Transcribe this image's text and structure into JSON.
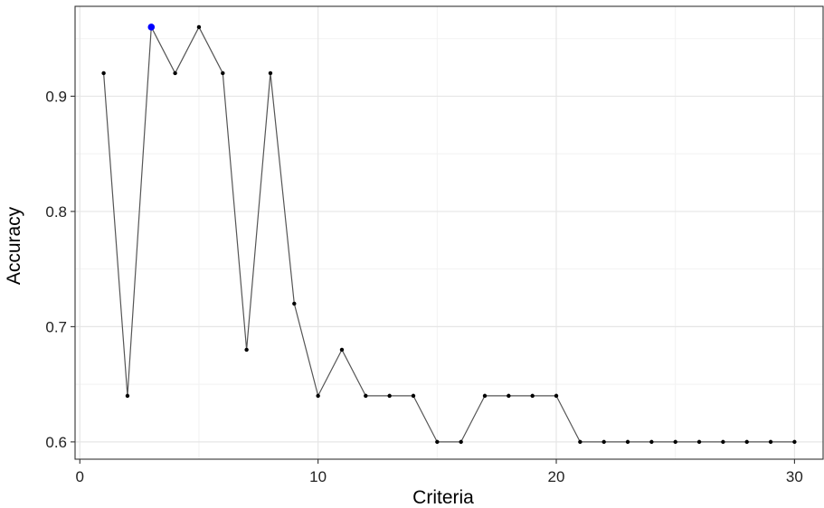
{
  "chart_data": {
    "type": "line",
    "title": "",
    "xlabel": "Criteria",
    "ylabel": "Accuracy",
    "xlim": [
      -0.2,
      31.2
    ],
    "ylim": [
      0.585,
      0.978
    ],
    "x_ticks": [
      0,
      10,
      20,
      30
    ],
    "y_ticks": [
      0.6,
      0.7,
      0.8,
      0.9
    ],
    "x_tick_labels": [
      "0",
      "10",
      "20",
      "30"
    ],
    "y_tick_labels": [
      "0.6",
      "0.7",
      "0.8",
      "0.9"
    ],
    "grid": true,
    "legend": "none",
    "series": [
      {
        "x": [
          1,
          2,
          3,
          4,
          5,
          6,
          7,
          8,
          9,
          10,
          11,
          12,
          13,
          14,
          15,
          16,
          17,
          18,
          19,
          20,
          21,
          22,
          23,
          24,
          25,
          26,
          27,
          28,
          29,
          30
        ],
        "values": [
          0.92,
          0.64,
          0.96,
          0.92,
          0.96,
          0.92,
          0.68,
          0.92,
          0.72,
          0.64,
          0.68,
          0.64,
          0.64,
          0.64,
          0.6,
          0.6,
          0.64,
          0.64,
          0.64,
          0.64,
          0.6,
          0.6,
          0.6,
          0.6,
          0.6,
          0.6,
          0.6,
          0.6,
          0.6,
          0.6
        ],
        "color": "#000000"
      }
    ],
    "highlight": {
      "x": 3,
      "y": 0.96,
      "color": "#0000ff"
    }
  },
  "colors": {
    "line": "#555555",
    "point": "#000000",
    "grid_major": "#e6e6e6",
    "grid_minor": "#f2f2f2",
    "panel_border": "#333333"
  }
}
